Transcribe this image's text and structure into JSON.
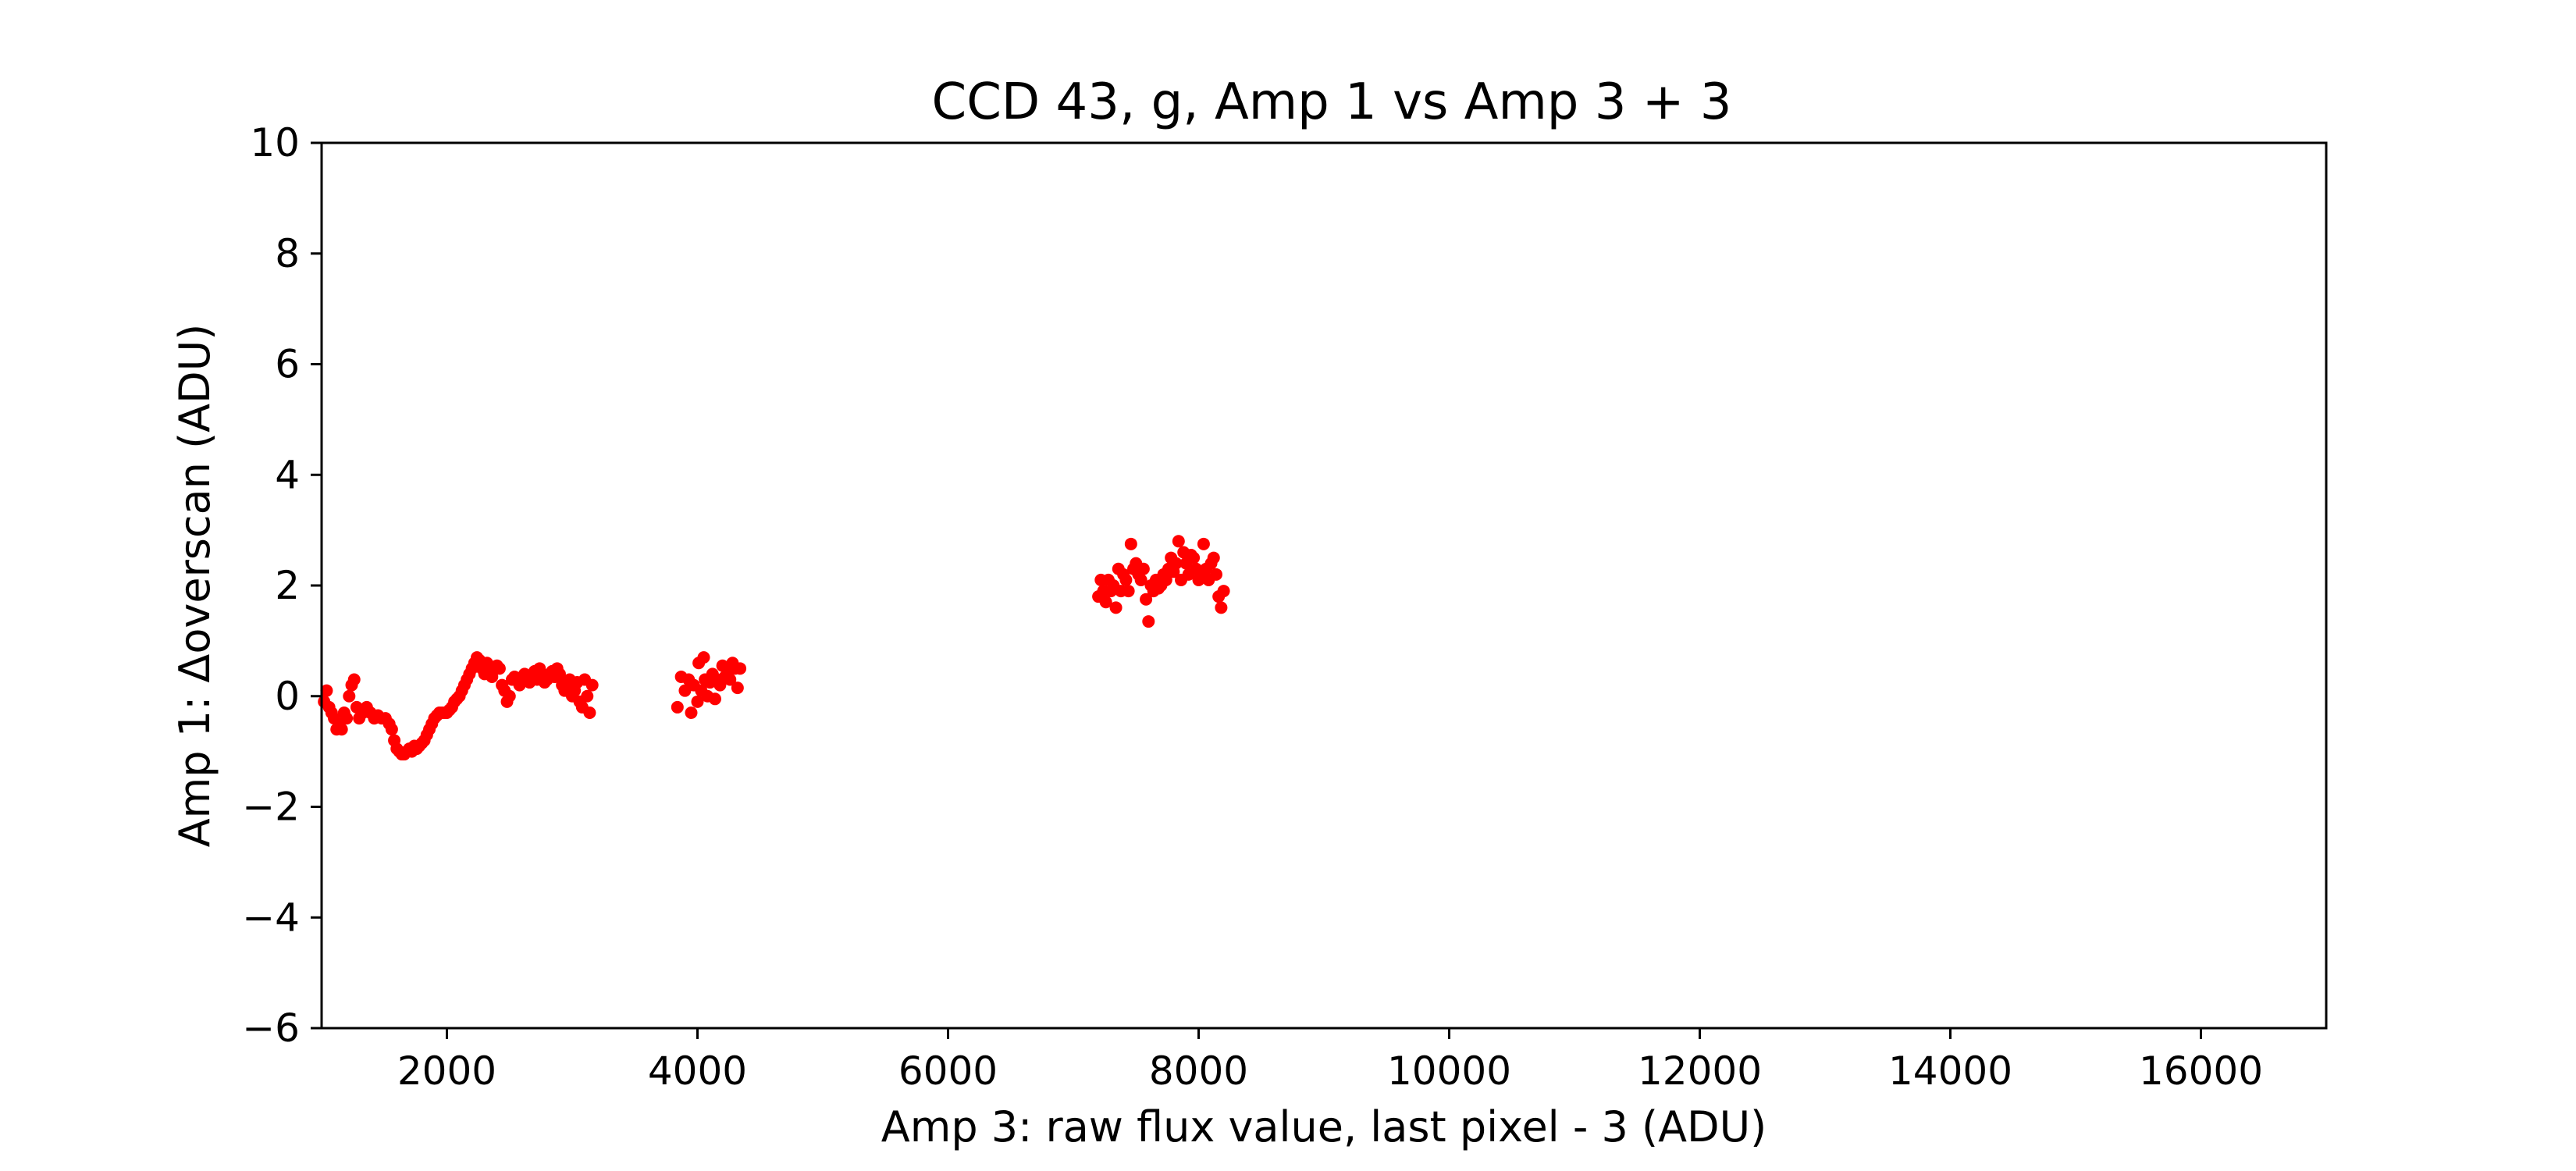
{
  "chart_data": {
    "type": "scatter",
    "title": "CCD 43, g, Amp 1 vs Amp 3 + 3",
    "xlabel": "Amp 3: raw flux value, last pixel - 3 (ADU)",
    "ylabel": "Amp 1: Δoverscan (ADU)",
    "xlim": [
      1000,
      17000
    ],
    "ylim": [
      -6,
      10
    ],
    "xticks": [
      2000,
      4000,
      6000,
      8000,
      10000,
      12000,
      14000,
      16000
    ],
    "yticks": [
      -6,
      -4,
      -2,
      0,
      2,
      4,
      6,
      8,
      10
    ],
    "xtick_labels": [
      "2000",
      "4000",
      "6000",
      "8000",
      "10000",
      "12000",
      "14000",
      "16000"
    ],
    "ytick_labels": [
      "−6",
      "−4",
      "−2",
      "0",
      "2",
      "4",
      "6",
      "8",
      "10"
    ],
    "grid": false,
    "marker_color": "#ff0000",
    "series": [
      {
        "points": [
          [
            1020,
            -0.1
          ],
          [
            1040,
            0.1
          ],
          [
            1060,
            -0.2
          ],
          [
            1080,
            -0.3
          ],
          [
            1100,
            -0.4
          ],
          [
            1120,
            -0.6
          ],
          [
            1140,
            -0.5
          ],
          [
            1160,
            -0.6
          ],
          [
            1180,
            -0.3
          ],
          [
            1200,
            -0.4
          ],
          [
            1220,
            0.0
          ],
          [
            1240,
            0.2
          ],
          [
            1260,
            0.3
          ],
          [
            1280,
            -0.2
          ],
          [
            1300,
            -0.4
          ],
          [
            1330,
            -0.3
          ],
          [
            1360,
            -0.2
          ],
          [
            1390,
            -0.3
          ],
          [
            1420,
            -0.4
          ],
          [
            1450,
            -0.35
          ],
          [
            1480,
            -0.4
          ],
          [
            1510,
            -0.4
          ],
          [
            1540,
            -0.5
          ],
          [
            1560,
            -0.6
          ],
          [
            1580,
            -0.8
          ],
          [
            1600,
            -0.95
          ],
          [
            1620,
            -1.0
          ],
          [
            1640,
            -1.05
          ],
          [
            1660,
            -1.05
          ],
          [
            1680,
            -1.0
          ],
          [
            1700,
            -0.95
          ],
          [
            1720,
            -1.0
          ],
          [
            1740,
            -0.9
          ],
          [
            1760,
            -0.95
          ],
          [
            1780,
            -0.9
          ],
          [
            1800,
            -0.85
          ],
          [
            1820,
            -0.8
          ],
          [
            1840,
            -0.7
          ],
          [
            1860,
            -0.6
          ],
          [
            1880,
            -0.5
          ],
          [
            1900,
            -0.4
          ],
          [
            1920,
            -0.35
          ],
          [
            1940,
            -0.3
          ],
          [
            1960,
            -0.3
          ],
          [
            1980,
            -0.3
          ],
          [
            2000,
            -0.3
          ],
          [
            2020,
            -0.25
          ],
          [
            2040,
            -0.2
          ],
          [
            2060,
            -0.1
          ],
          [
            2080,
            -0.05
          ],
          [
            2100,
            0.0
          ],
          [
            2120,
            0.1
          ],
          [
            2140,
            0.2
          ],
          [
            2160,
            0.3
          ],
          [
            2180,
            0.4
          ],
          [
            2200,
            0.5
          ],
          [
            2220,
            0.6
          ],
          [
            2240,
            0.7
          ],
          [
            2260,
            0.65
          ],
          [
            2280,
            0.5
          ],
          [
            2300,
            0.4
          ],
          [
            2320,
            0.6
          ],
          [
            2340,
            0.45
          ],
          [
            2360,
            0.35
          ],
          [
            2380,
            0.5
          ],
          [
            2400,
            0.55
          ],
          [
            2420,
            0.5
          ],
          [
            2440,
            0.2
          ],
          [
            2460,
            0.1
          ],
          [
            2480,
            -0.1
          ],
          [
            2500,
            0.0
          ],
          [
            2520,
            0.3
          ],
          [
            2540,
            0.35
          ],
          [
            2560,
            0.3
          ],
          [
            2580,
            0.2
          ],
          [
            2600,
            0.3
          ],
          [
            2620,
            0.4
          ],
          [
            2640,
            0.35
          ],
          [
            2660,
            0.25
          ],
          [
            2680,
            0.3
          ],
          [
            2700,
            0.45
          ],
          [
            2720,
            0.3
          ],
          [
            2740,
            0.5
          ],
          [
            2760,
            0.35
          ],
          [
            2780,
            0.25
          ],
          [
            2800,
            0.3
          ],
          [
            2820,
            0.4
          ],
          [
            2840,
            0.45
          ],
          [
            2860,
            0.35
          ],
          [
            2880,
            0.5
          ],
          [
            2900,
            0.4
          ],
          [
            2920,
            0.2
          ],
          [
            2940,
            0.1
          ],
          [
            2960,
            0.25
          ],
          [
            2980,
            0.3
          ],
          [
            3000,
            0.0
          ],
          [
            3020,
            0.1
          ],
          [
            3040,
            0.25
          ],
          [
            3060,
            -0.1
          ],
          [
            3080,
            -0.2
          ],
          [
            3100,
            0.3
          ],
          [
            3120,
            0.0
          ],
          [
            3140,
            -0.3
          ],
          [
            3160,
            0.2
          ],
          [
            3840,
            -0.2
          ],
          [
            3870,
            0.35
          ],
          [
            3900,
            0.1
          ],
          [
            3930,
            0.3
          ],
          [
            3950,
            -0.3
          ],
          [
            3970,
            0.2
          ],
          [
            4000,
            -0.1
          ],
          [
            4010,
            0.6
          ],
          [
            4030,
            0.1
          ],
          [
            4050,
            0.7
          ],
          [
            4060,
            0.3
          ],
          [
            4080,
            0.0
          ],
          [
            4100,
            0.25
          ],
          [
            4120,
            0.4
          ],
          [
            4140,
            -0.05
          ],
          [
            4160,
            0.3
          ],
          [
            4180,
            0.2
          ],
          [
            4200,
            0.55
          ],
          [
            4220,
            0.35
          ],
          [
            4240,
            0.45
          ],
          [
            4260,
            0.3
          ],
          [
            4280,
            0.6
          ],
          [
            4300,
            0.5
          ],
          [
            4320,
            0.15
          ],
          [
            4340,
            0.5
          ],
          [
            7200,
            1.8
          ],
          [
            7220,
            2.1
          ],
          [
            7240,
            1.9
          ],
          [
            7260,
            1.7
          ],
          [
            7280,
            2.1
          ],
          [
            7300,
            1.9
          ],
          [
            7320,
            2.0
          ],
          [
            7340,
            1.6
          ],
          [
            7360,
            2.3
          ],
          [
            7380,
            1.9
          ],
          [
            7400,
            2.2
          ],
          [
            7420,
            2.1
          ],
          [
            7440,
            1.9
          ],
          [
            7460,
            2.75
          ],
          [
            7480,
            2.3
          ],
          [
            7500,
            2.4
          ],
          [
            7520,
            2.2
          ],
          [
            7540,
            2.1
          ],
          [
            7560,
            2.3
          ],
          [
            7580,
            1.75
          ],
          [
            7600,
            1.35
          ],
          [
            7620,
            2.0
          ],
          [
            7640,
            1.9
          ],
          [
            7660,
            2.1
          ],
          [
            7680,
            1.95
          ],
          [
            7700,
            2.0
          ],
          [
            7720,
            2.2
          ],
          [
            7740,
            2.1
          ],
          [
            7760,
            2.3
          ],
          [
            7780,
            2.5
          ],
          [
            7800,
            2.25
          ],
          [
            7820,
            2.4
          ],
          [
            7840,
            2.8
          ],
          [
            7860,
            2.1
          ],
          [
            7880,
            2.6
          ],
          [
            7900,
            2.4
          ],
          [
            7920,
            2.2
          ],
          [
            7940,
            2.55
          ],
          [
            7960,
            2.5
          ],
          [
            7980,
            2.3
          ],
          [
            8000,
            2.1
          ],
          [
            8020,
            2.2
          ],
          [
            8040,
            2.75
          ],
          [
            8060,
            2.3
          ],
          [
            8080,
            2.1
          ],
          [
            8100,
            2.4
          ],
          [
            8120,
            2.5
          ],
          [
            8140,
            2.2
          ],
          [
            8160,
            1.8
          ],
          [
            8180,
            1.6
          ],
          [
            8200,
            1.9
          ]
        ]
      }
    ]
  }
}
